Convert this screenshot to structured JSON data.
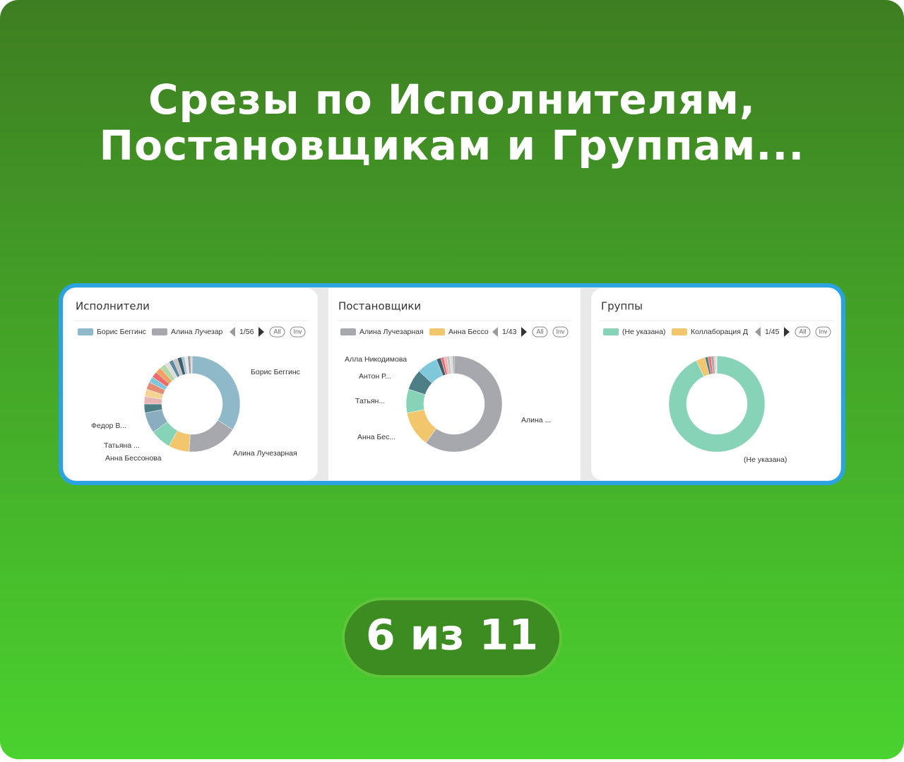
{
  "header": {
    "title": [
      "Срезы по Исполнителям,",
      "Постановщикам и Группам..."
    ]
  },
  "chart_data": [
    {
      "type": "pie",
      "title": "Исполнители",
      "legend": [
        "Борис Беггинс",
        "Алина Лучезар"
      ],
      "pager": "1/56",
      "buttons": [
        "All",
        "Inv"
      ],
      "categories": [
        "Борис Беггинс",
        "Алина Лучезарная",
        "Анна Бессонова",
        "Татьяна ...",
        "Федор В...",
        null,
        null,
        null,
        null,
        null,
        null,
        null,
        null,
        null,
        null,
        null,
        null,
        null,
        null,
        null,
        null
      ],
      "values": [
        34,
        17,
        7,
        7,
        7,
        3,
        2.5,
        2.5,
        2.5,
        2,
        2,
        2,
        2,
        1.5,
        1.5,
        1.5,
        1.5,
        1,
        1,
        1,
        0.5
      ],
      "colors": [
        "#8fb9c9",
        "#a7a8ad",
        "#f2c66d",
        "#87d3b7",
        "#8aaebf",
        "#4e7e86",
        "#e9b4b4",
        "#f5d491",
        "#e68c76",
        "#7fc8dc",
        "#ef6b6b",
        "#f3a162",
        "#b6d7a8",
        "#ddd",
        "#5b8aa0",
        "#c5c5c5",
        "#3f5d6b",
        "#a4c2d4",
        "#e6e6e6",
        "#9d9d9d",
        "#cfcfcf"
      ]
    },
    {
      "type": "pie",
      "title": "Постановщики",
      "legend": [
        "Алина Лучезарная",
        "Анна Бессо"
      ],
      "pager": "1/43",
      "buttons": [
        "All",
        "Inv"
      ],
      "categories": [
        "Алина ...",
        "Анна Бес...",
        "Татьян...",
        "Антон Р...",
        "Алла Никодимова",
        null,
        null,
        null,
        null,
        null,
        null
      ],
      "values": [
        60,
        12,
        8,
        7,
        7,
        1.5,
        1,
        1,
        1,
        1,
        0.5
      ],
      "colors": [
        "#a7a8ad",
        "#f2c66d",
        "#87d3b7",
        "#4e7e86",
        "#7fc8dc",
        "#3f5d6b",
        "#ef6b6b",
        "#e9b4b4",
        "#c5c5c5",
        "#ddd",
        "#9d9d9d"
      ]
    },
    {
      "type": "pie",
      "title": "Группы",
      "legend": [
        "(Не указана)",
        "Коллаборация Д"
      ],
      "pager": "1/45",
      "buttons": [
        "All",
        "Inv"
      ],
      "categories": [
        "(Не указана)",
        null,
        null,
        null,
        null,
        null,
        null
      ],
      "values": [
        93,
        3,
        1,
        1,
        1,
        0.5,
        0.5
      ],
      "colors": [
        "#87d3b7",
        "#f2c66d",
        "#4e7e86",
        "#ef6b6b",
        "#a7a8ad",
        "#e9b4b4",
        "#ddd"
      ]
    }
  ],
  "footer": {
    "counter": "6 из 11"
  }
}
